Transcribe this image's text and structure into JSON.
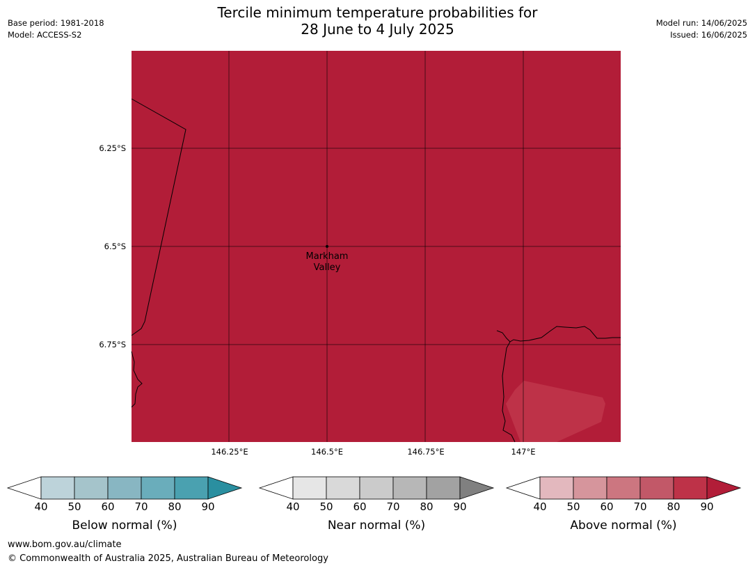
{
  "header": {
    "title_line1": "Tercile minimum temperature probabilities for",
    "title_line2": "28 June to 4 July 2025",
    "base_period": "Base period: 1981-2018",
    "model": "Model: ACCESS-S2",
    "model_run": "Model run: 14/06/2025",
    "issued": "Issued: 16/06/2025"
  },
  "map": {
    "background_color": "#b21d38",
    "patch_color": "#be3248",
    "lat_labels": [
      "6.25°S",
      "6.5°S",
      "6.75°S"
    ],
    "lon_labels": [
      "146.25°E",
      "146.5°E",
      "146.75°E",
      "147°E"
    ],
    "place": {
      "line1": "Markham",
      "line2": "Valley"
    }
  },
  "colorbars": [
    {
      "label": "Below normal (%)",
      "ticks": [
        "40",
        "50",
        "60",
        "70",
        "80",
        "90"
      ],
      "colors": [
        "#ffffff",
        "#bdd3da",
        "#a5c4cb",
        "#88b6c2",
        "#6aadbb",
        "#4aa1b0",
        "#2a8fa0"
      ]
    },
    {
      "label": "Near normal (%)",
      "ticks": [
        "40",
        "50",
        "60",
        "70",
        "80",
        "90"
      ],
      "colors": [
        "#ffffff",
        "#e6e6e6",
        "#d9d9d9",
        "#cbcbcb",
        "#b7b7b7",
        "#a2a2a2",
        "#808080"
      ]
    },
    {
      "label": "Above normal (%)",
      "ticks": [
        "40",
        "50",
        "60",
        "70",
        "80",
        "90"
      ],
      "colors": [
        "#ffffff",
        "#e3b8be",
        "#d6959c",
        "#cc7680",
        "#c25868",
        "#be3248",
        "#b21d38"
      ]
    }
  ],
  "footer": {
    "url": "www.bom.gov.au/climate",
    "copyright": "© Commonwealth of Australia 2025, Australian Bureau of Meteorology"
  }
}
